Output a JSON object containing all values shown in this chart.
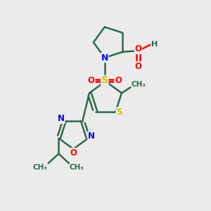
{
  "bg_color": "#ebebeb",
  "bond_color": "#2d6b4a",
  "N_color": "#0000ff",
  "O_color": "#ff0000",
  "S_color": "#cccc00",
  "line_width": 1.8,
  "figsize": [
    3.0,
    3.0
  ],
  "dpi": 100,
  "xlim": [
    0,
    10
  ],
  "ylim": [
    0,
    10
  ]
}
